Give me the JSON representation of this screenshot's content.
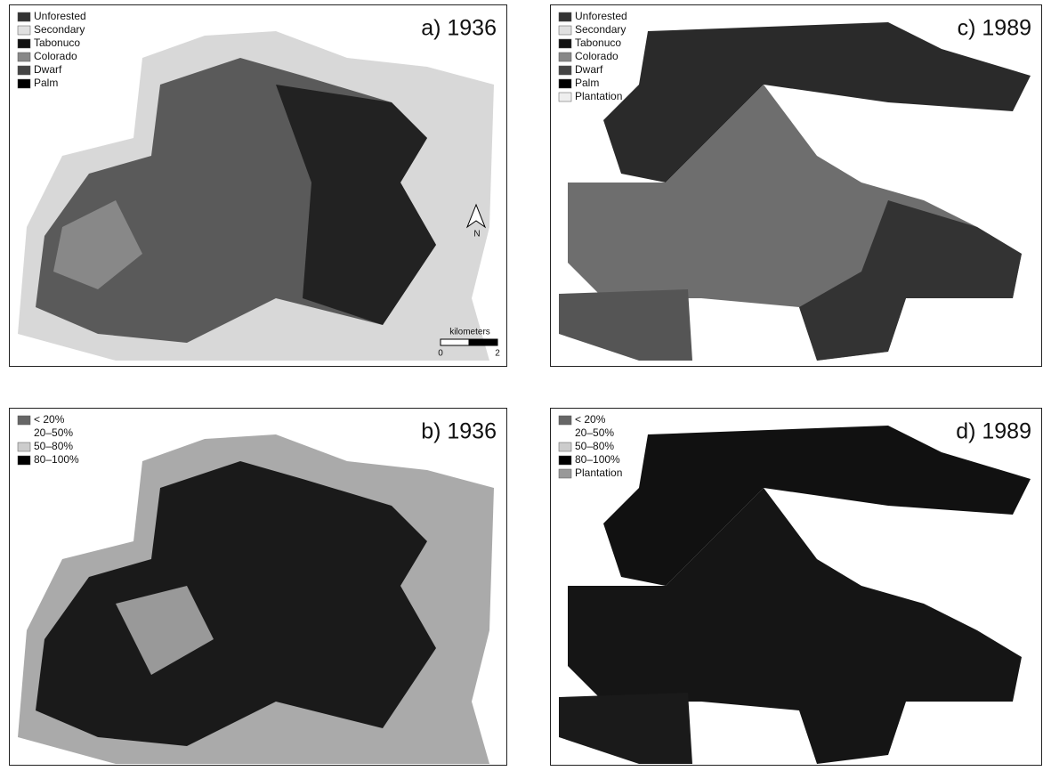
{
  "panels": [
    {
      "title": "a) 1936",
      "legend": [
        "Unforested",
        "Secondary",
        "Tabonuco",
        "Colorado",
        "Dwarf",
        "Palm"
      ],
      "scale": {
        "label": "kilometers",
        "ticks": [
          "0",
          "2"
        ]
      },
      "north": "N"
    },
    {
      "title": "c) 1989",
      "legend": [
        "Unforested",
        "Secondary",
        "Tabonuco",
        "Colorado",
        "Dwarf",
        "Palm",
        "Plantation"
      ]
    },
    {
      "title": "b) 1936",
      "legend": [
        "< 20%",
        "20–50%",
        "50–80%",
        "80–100%"
      ]
    },
    {
      "title": "d) 1989",
      "legend": [
        "< 20%",
        "20–50%",
        "50–80%",
        "80–100%",
        "Plantation"
      ]
    }
  ]
}
